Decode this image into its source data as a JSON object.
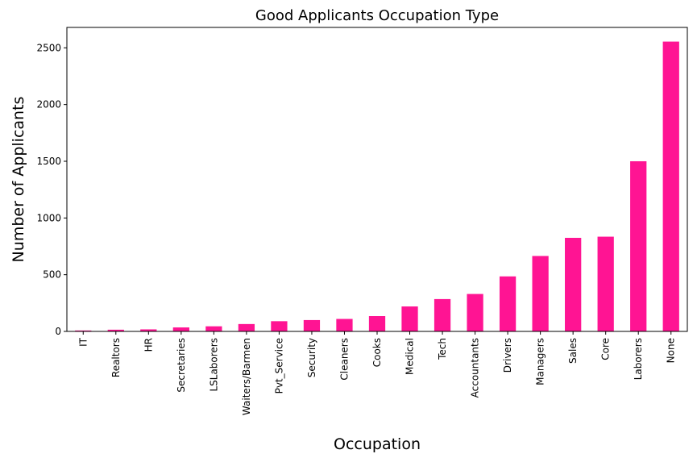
{
  "chart_data": {
    "type": "bar",
    "title": "Good Applicants Occupation Type",
    "xlabel": "Occupation",
    "ylabel": "Number of Applicants",
    "categories": [
      "IT",
      "Realtors",
      "HR",
      "Secretaries",
      "LSLaborers",
      "Waiters/Barmen",
      "Pvt_Service",
      "Security",
      "Cleaners",
      "Cooks",
      "Medical",
      "Tech",
      "Accountants",
      "Drivers",
      "Managers",
      "Sales",
      "Core",
      "Laborers",
      "None"
    ],
    "values": [
      8,
      15,
      18,
      35,
      45,
      65,
      90,
      100,
      110,
      135,
      220,
      285,
      330,
      485,
      665,
      825,
      835,
      1500,
      2555
    ],
    "ylim": [
      0,
      2680
    ],
    "yticks": [
      0,
      500,
      1000,
      1500,
      2000,
      2500
    ],
    "ytick_labels": [
      "0",
      "500",
      "1000",
      "1500",
      "2000",
      "2500"
    ],
    "bar_color": "#ff1493",
    "grid": false,
    "legend": "none"
  }
}
